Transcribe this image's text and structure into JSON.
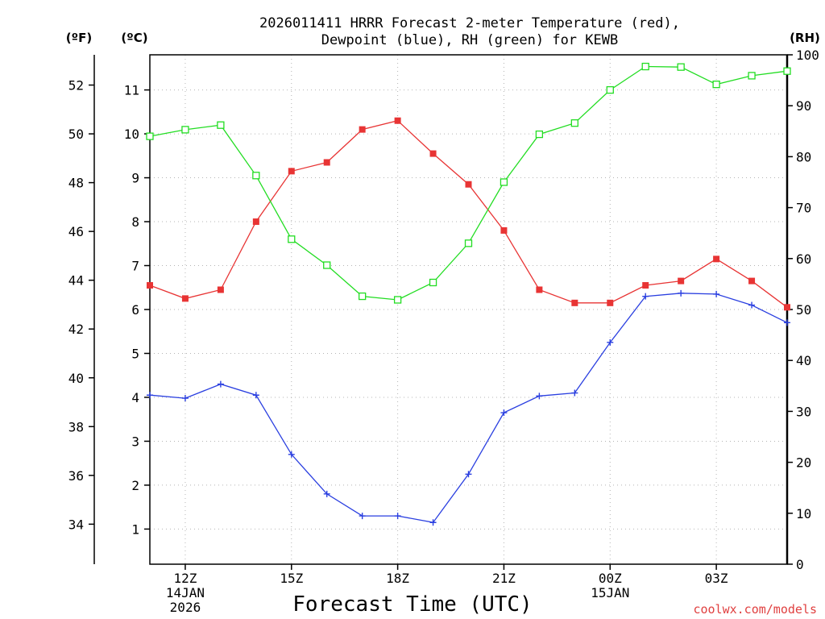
{
  "chart_data": {
    "type": "line",
    "title": [
      "2026011411 HRRR Forecast 2-meter Temperature (red),",
      "Dewpoint (blue), RH (green) for KEWB"
    ],
    "xlabel": "Forecast Time (UTC)",
    "credit": "coolwx.com/models",
    "units": {
      "fahrenheit": "(ºF)",
      "celsius": "(ºC)",
      "rh": "(RH)"
    },
    "x_hours": [
      11,
      12,
      13,
      14,
      15,
      16,
      17,
      18,
      19,
      20,
      21,
      22,
      23,
      24,
      25,
      26,
      27,
      28,
      29
    ],
    "xlim": [
      11,
      29
    ],
    "x_ticks": [
      {
        "hour": 12,
        "label": "12Z",
        "sub": [
          "14JAN",
          "2026"
        ]
      },
      {
        "hour": 15,
        "label": "15Z",
        "sub": []
      },
      {
        "hour": 18,
        "label": "18Z",
        "sub": []
      },
      {
        "hour": 21,
        "label": "21Z",
        "sub": []
      },
      {
        "hour": 24,
        "label": "00Z",
        "sub": [
          "15JAN"
        ]
      },
      {
        "hour": 27,
        "label": "03Z",
        "sub": []
      }
    ],
    "celsius_axis": {
      "ylim": [
        0.2,
        11.8
      ],
      "ticks": [
        1,
        2,
        3,
        4,
        5,
        6,
        7,
        8,
        9,
        10,
        11
      ]
    },
    "fahrenheit_ticks": [
      34,
      36,
      38,
      40,
      42,
      44,
      46,
      48,
      50,
      52
    ],
    "rh_axis": {
      "ylim": [
        0,
        100
      ],
      "ticks": [
        0,
        10,
        20,
        30,
        40,
        50,
        60,
        70,
        80,
        90,
        100
      ]
    },
    "series": [
      {
        "name": "Temperature",
        "color": "#e83434",
        "axis": "celsius",
        "marker": "filled-square",
        "values": [
          6.55,
          6.25,
          6.45,
          8.0,
          9.15,
          9.35,
          10.1,
          10.3,
          9.55,
          8.85,
          7.8,
          6.45,
          6.15,
          6.15,
          6.55,
          6.65,
          7.15,
          6.65,
          6.05
        ]
      },
      {
        "name": "Dewpoint",
        "color": "#2a3fe0",
        "axis": "celsius",
        "marker": "plus",
        "values": [
          4.05,
          3.98,
          4.3,
          4.05,
          2.7,
          1.8,
          1.3,
          1.3,
          1.15,
          2.25,
          3.65,
          4.03,
          4.1,
          5.25,
          6.3,
          6.37,
          6.35,
          6.1,
          5.7
        ]
      },
      {
        "name": "RH",
        "color": "#22dd22",
        "axis": "rh",
        "marker": "open-square",
        "values": [
          84,
          85.3,
          86.2,
          76.3,
          63.8,
          58.7,
          52.6,
          51.9,
          55.3,
          63.0,
          75.0,
          84.4,
          86.6,
          93.1,
          97.7,
          97.6,
          94.2,
          95.9,
          96.8
        ]
      }
    ]
  }
}
